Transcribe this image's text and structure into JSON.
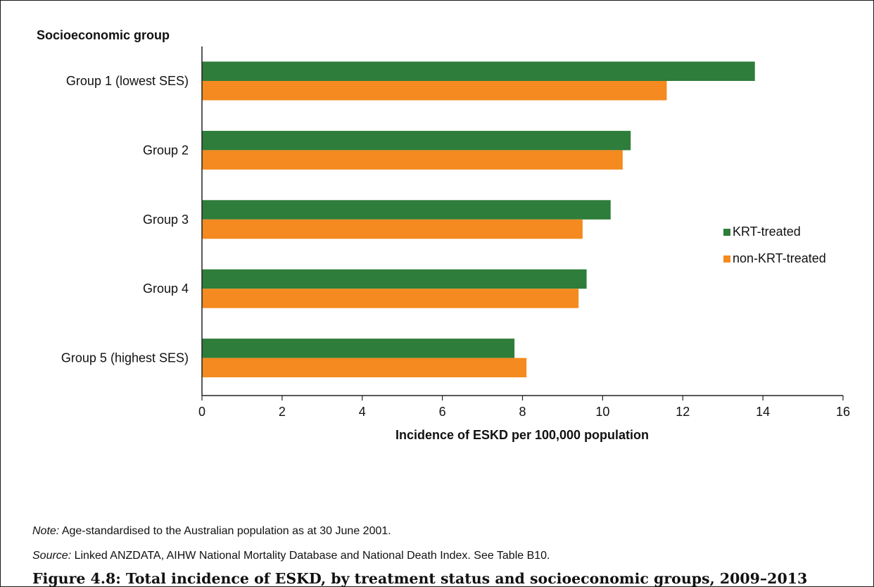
{
  "chart_data": {
    "type": "bar",
    "orientation": "horizontal",
    "ylabel": "Socioeconomic group",
    "xlabel": "Incidence of ESKD per 100,000 population",
    "categories": [
      "Group 1 (lowest SES)",
      "Group 2",
      "Group 3",
      "Group 4",
      "Group 5 (highest SES)"
    ],
    "series": [
      {
        "name": "KRT-treated",
        "color": "#2e7d3a",
        "values": [
          13.8,
          10.7,
          10.2,
          9.6,
          7.8
        ]
      },
      {
        "name": "non-KRT-treated",
        "color": "#f48a20",
        "values": [
          11.6,
          10.5,
          9.5,
          9.4,
          8.1
        ]
      }
    ],
    "xlim": [
      0,
      16
    ],
    "xticks": [
      0,
      2,
      4,
      6,
      8,
      10,
      12,
      14,
      16
    ],
    "grid": false,
    "legend": "right"
  },
  "notes": {
    "note_label": "Note:",
    "note_text": " Age-standardised to the Australian population as at 30 June 2001.",
    "source_label": "Source:",
    "source_text": " Linked ANZDATA, AIHW National Mortality Database and National Death Index. See Table B10."
  },
  "caption": "Figure 4.8: Total incidence of ESKD, by treatment status and socioeconomic groups, 2009–2013"
}
